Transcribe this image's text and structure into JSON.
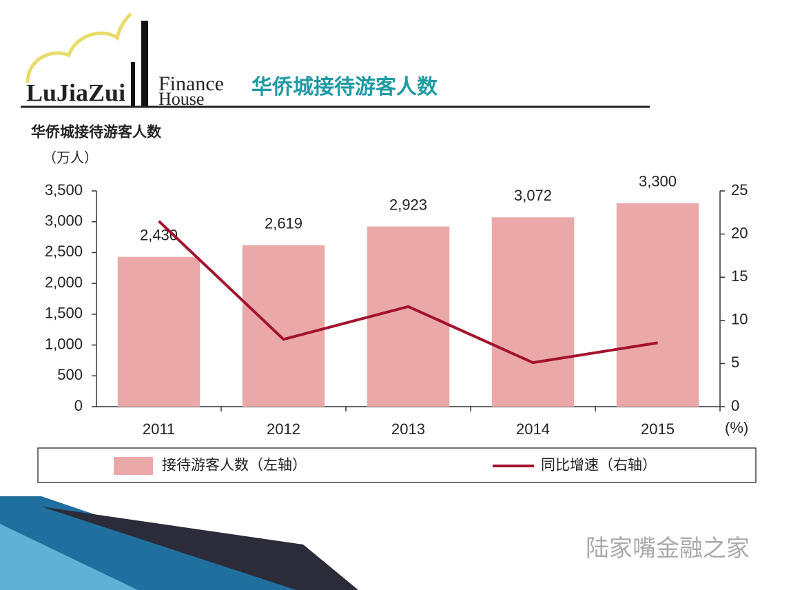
{
  "header": {
    "logo_name": "LuJiaZui",
    "logo_tagline_1": "Finance",
    "logo_tagline_2": "House",
    "title": "华侨城接待游客人数"
  },
  "chart_data": {
    "type": "bar",
    "title": "华侨城接待游客人数",
    "y_label": "（万人）",
    "y2_label": "(%)",
    "categories": [
      "2011",
      "2012",
      "2013",
      "2014",
      "2015"
    ],
    "series": [
      {
        "name": "接待游客人数（左轴）",
        "type": "bar",
        "color": "#eaa9a8",
        "values": [
          2430,
          2619,
          2923,
          3072,
          3300
        ],
        "value_labels": [
          "2,430",
          "2,619",
          "2,923",
          "3,072",
          "3,300"
        ]
      },
      {
        "name": "同比增速（右轴）",
        "type": "line",
        "axis": "y2",
        "color": "#a3122e",
        "values": [
          21.5,
          7.8,
          11.6,
          5.1,
          7.4
        ]
      }
    ],
    "ylim": [
      0,
      3500
    ],
    "yticks": [
      0,
      500,
      {
        "value": 1000,
        "label": "1,000"
      },
      {
        "value": 1500,
        "label": "1,500"
      },
      {
        "value": 2000,
        "label": "2,000"
      },
      {
        "value": 2500,
        "label": "2,500"
      },
      {
        "value": 3000,
        "label": "3,000"
      },
      {
        "value": 3500,
        "label": "3,500"
      }
    ],
    "y2lim": [
      0,
      25
    ],
    "y2ticks": [
      0,
      5,
      10,
      15,
      20,
      25
    ],
    "grid": false,
    "legend": "bottom"
  },
  "watermark": "陆家嘴金融之家"
}
